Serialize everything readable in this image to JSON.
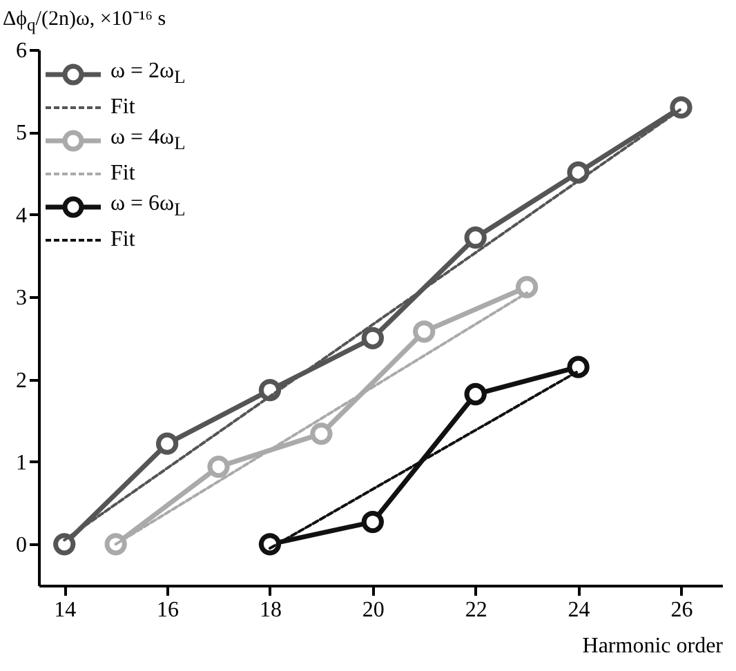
{
  "chart_data": {
    "type": "line",
    "xlabel": "Harmonic order",
    "ylabel": "Δϕ$_{q}$/(2n)ω, ×10⁻¹⁶ s",
    "xlim": [
      13.5,
      26.8
    ],
    "ylim": [
      -0.5,
      6
    ],
    "xticks": [
      14,
      16,
      18,
      20,
      22,
      24,
      26
    ],
    "yticks": [
      0,
      1,
      2,
      3,
      4,
      5,
      6
    ],
    "grid": false,
    "legend": "top left",
    "series": [
      {
        "name": "ω = 2ω$_{L}$",
        "color": "#555555",
        "x": [
          14,
          16,
          18,
          20,
          22,
          24,
          26
        ],
        "values": [
          0,
          1.22,
          1.87,
          2.5,
          3.72,
          4.51,
          5.3
        ],
        "marker": "circle",
        "line_style": "solid"
      },
      {
        "name": "Fit",
        "color": "#555555",
        "x": [
          14,
          26
        ],
        "values": [
          0.05,
          5.28
        ],
        "marker": "none",
        "line_style": "dashed"
      },
      {
        "name": "ω = 4ω$_{L}$",
        "color": "#aaaaaa",
        "x": [
          15,
          17,
          19,
          21,
          23
        ],
        "values": [
          0,
          0.94,
          1.34,
          2.58,
          3.12
        ],
        "marker": "circle",
        "line_style": "solid"
      },
      {
        "name": "Fit",
        "color": "#aaaaaa",
        "x": [
          15,
          23
        ],
        "values": [
          0,
          3.05
        ],
        "marker": "none",
        "line_style": "dashed"
      },
      {
        "name": "ω = 6ω$_{L}$",
        "color": "#111111",
        "x": [
          18,
          20,
          22,
          24
        ],
        "values": [
          0,
          0.27,
          1.82,
          2.15
        ],
        "marker": "circle",
        "line_style": "solid"
      },
      {
        "name": "Fit",
        "color": "#111111",
        "x": [
          18,
          24
        ],
        "values": [
          -0.05,
          2.1
        ],
        "marker": "none",
        "line_style": "dashed"
      }
    ]
  }
}
